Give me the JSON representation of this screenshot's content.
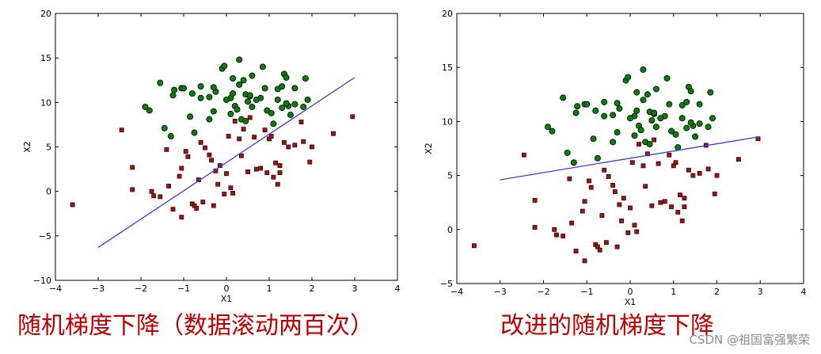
{
  "captions": {
    "left": "随机梯度下降（数据滚动两百次）",
    "right": "改进的随机梯度下降"
  },
  "watermark": "CSDN @祖国富强繁荣",
  "colors": {
    "class1_fill": "#0b7d0b",
    "class0_fill": "#a31010",
    "line": "#3a3aff",
    "caption": "#c00000"
  },
  "chart_data": [
    {
      "type": "scatter",
      "title": "",
      "xlabel": "X1",
      "ylabel": "X2",
      "xlim": [
        -4,
        4
      ],
      "ylim": [
        -10,
        20
      ],
      "xticks": [
        -4,
        -3,
        -2,
        -1,
        0,
        1,
        2,
        3,
        4
      ],
      "yticks": [
        -10,
        -5,
        0,
        5,
        10,
        15,
        20
      ],
      "series": [
        {
          "marker": "circle",
          "points": [
            [
              -1.55,
              12.2
            ],
            [
              -1.22,
              11.4
            ],
            [
              -1.05,
              11.6
            ],
            [
              -1.0,
              11.6
            ],
            [
              -0.8,
              11.0
            ],
            [
              -0.6,
              11.8
            ],
            [
              -0.4,
              10.6
            ],
            [
              -0.3,
              9.0
            ],
            [
              -0.1,
              13.8
            ],
            [
              -0.05,
              14.1
            ],
            [
              0.1,
              10.5
            ],
            [
              0.15,
              11.0
            ],
            [
              0.2,
              9.6
            ],
            [
              0.25,
              9.2
            ],
            [
              0.3,
              14.8
            ],
            [
              0.3,
              12.0
            ],
            [
              0.4,
              12.5
            ],
            [
              0.45,
              10.9
            ],
            [
              0.5,
              10.1
            ],
            [
              0.55,
              10.7
            ],
            [
              0.6,
              9.5
            ],
            [
              0.6,
              13.0
            ],
            [
              0.8,
              10.5
            ],
            [
              0.85,
              14.0
            ],
            [
              0.9,
              11.6
            ],
            [
              1.1,
              7.6
            ],
            [
              1.2,
              11.5
            ],
            [
              1.3,
              11.8
            ],
            [
              1.35,
              13.2
            ],
            [
              1.4,
              12.8
            ],
            [
              1.45,
              9.6
            ],
            [
              1.5,
              8.6
            ],
            [
              1.6,
              9.8
            ],
            [
              1.85,
              12.7
            ],
            [
              1.9,
              10.3
            ],
            [
              -1.9,
              9.5
            ],
            [
              -1.8,
              9.1
            ],
            [
              -1.45,
              7.1
            ],
            [
              -1.3,
              6.2
            ],
            [
              -1.25,
              10.8
            ],
            [
              -0.85,
              8.4
            ],
            [
              -0.75,
              6.6
            ],
            [
              -0.6,
              10.5
            ],
            [
              -0.4,
              8.1
            ],
            [
              -0.25,
              11.2
            ],
            [
              0.0,
              10.3
            ],
            [
              0.1,
              8.7
            ],
            [
              0.35,
              8.1
            ],
            [
              0.45,
              7.9
            ],
            [
              0.55,
              10.8
            ],
            [
              0.95,
              9.1
            ],
            [
              1.05,
              8.8
            ],
            [
              1.3,
              9.4
            ],
            [
              1.6,
              11.6
            ],
            [
              1.8,
              9.5
            ],
            [
              -0.3,
              11.7
            ],
            [
              0.15,
              12.7
            ],
            [
              0.7,
              10.3
            ],
            [
              1.2,
              10.3
            ],
            [
              1.4,
              9.9
            ]
          ]
        },
        {
          "marker": "square",
          "points": [
            [
              -3.6,
              -1.5
            ],
            [
              -2.45,
              6.9
            ],
            [
              -2.2,
              2.7
            ],
            [
              -2.2,
              0.2
            ],
            [
              -1.75,
              0.0
            ],
            [
              -1.7,
              -0.5
            ],
            [
              -1.55,
              -0.6
            ],
            [
              -1.4,
              4.7
            ],
            [
              -1.35,
              0.6
            ],
            [
              -1.25,
              -2.0
            ],
            [
              -1.1,
              1.7
            ],
            [
              -1.05,
              -2.9
            ],
            [
              -0.95,
              4.5
            ],
            [
              -0.9,
              3.9
            ],
            [
              -0.8,
              -1.4
            ],
            [
              -0.75,
              -1.6
            ],
            [
              -0.7,
              -1.9
            ],
            [
              -0.65,
              1.3
            ],
            [
              -0.6,
              5.5
            ],
            [
              -0.5,
              4.9
            ],
            [
              -0.4,
              4.1
            ],
            [
              -0.35,
              3.5
            ],
            [
              -0.3,
              -1.6
            ],
            [
              -0.2,
              0.8
            ],
            [
              -0.15,
              2.9
            ],
            [
              0.0,
              2.0
            ],
            [
              0.05,
              6.2
            ],
            [
              0.1,
              0.4
            ],
            [
              0.15,
              -0.2
            ],
            [
              0.2,
              7.9
            ],
            [
              0.3,
              5.9
            ],
            [
              0.4,
              7.0
            ],
            [
              0.5,
              2.2
            ],
            [
              0.55,
              8.3
            ],
            [
              0.7,
              2.5
            ],
            [
              0.8,
              2.6
            ],
            [
              0.9,
              6.9
            ],
            [
              0.95,
              2.1
            ],
            [
              1.0,
              5.9
            ],
            [
              1.05,
              6.2
            ],
            [
              1.1,
              1.6
            ],
            [
              1.15,
              3.2
            ],
            [
              1.2,
              0.8
            ],
            [
              1.25,
              2.1
            ],
            [
              1.35,
              5.5
            ],
            [
              1.45,
              5.0
            ],
            [
              1.6,
              5.2
            ],
            [
              1.75,
              7.8
            ],
            [
              1.8,
              5.6
            ],
            [
              1.95,
              3.3
            ],
            [
              2.0,
              5.0
            ],
            [
              2.5,
              6.5
            ],
            [
              2.95,
              8.4
            ],
            [
              -0.05,
              -0.3
            ],
            [
              -0.25,
              2.3
            ],
            [
              0.35,
              4.0
            ],
            [
              0.65,
              6.1
            ],
            [
              1.25,
              2.9
            ],
            [
              -0.55,
              -1.2
            ],
            [
              -1.05,
              2.6
            ]
          ]
        }
      ],
      "line": {
        "x": [
          -3.0,
          3.0
        ],
        "y": [
          -6.3,
          12.8
        ]
      }
    },
    {
      "type": "scatter",
      "title": "",
      "xlabel": "X1",
      "ylabel": "X2",
      "xlim": [
        -4,
        4
      ],
      "ylim": [
        -5,
        20
      ],
      "xticks": [
        -4,
        -3,
        -2,
        -1,
        0,
        1,
        2,
        3,
        4
      ],
      "yticks": [
        -5,
        0,
        5,
        10,
        15,
        20
      ],
      "series": [
        {
          "marker": "circle",
          "points": [
            [
              -1.55,
              12.2
            ],
            [
              -1.22,
              11.4
            ],
            [
              -1.05,
              11.6
            ],
            [
              -1.0,
              11.6
            ],
            [
              -0.8,
              11.0
            ],
            [
              -0.6,
              11.8
            ],
            [
              -0.4,
              10.6
            ],
            [
              -0.3,
              9.0
            ],
            [
              -0.1,
              13.8
            ],
            [
              -0.05,
              14.1
            ],
            [
              0.1,
              10.5
            ],
            [
              0.15,
              11.0
            ],
            [
              0.2,
              9.6
            ],
            [
              0.25,
              9.2
            ],
            [
              0.3,
              14.8
            ],
            [
              0.3,
              12.0
            ],
            [
              0.4,
              12.5
            ],
            [
              0.45,
              10.9
            ],
            [
              0.5,
              10.1
            ],
            [
              0.55,
              10.7
            ],
            [
              0.6,
              9.5
            ],
            [
              0.6,
              13.0
            ],
            [
              0.8,
              10.5
            ],
            [
              0.85,
              14.0
            ],
            [
              0.9,
              11.6
            ],
            [
              1.1,
              7.6
            ],
            [
              1.2,
              11.5
            ],
            [
              1.3,
              11.8
            ],
            [
              1.35,
              13.2
            ],
            [
              1.4,
              12.8
            ],
            [
              1.45,
              9.6
            ],
            [
              1.5,
              8.6
            ],
            [
              1.6,
              9.8
            ],
            [
              1.85,
              12.7
            ],
            [
              1.9,
              10.3
            ],
            [
              -1.9,
              9.5
            ],
            [
              -1.8,
              9.1
            ],
            [
              -1.45,
              7.1
            ],
            [
              -1.3,
              6.2
            ],
            [
              -1.25,
              10.8
            ],
            [
              -0.85,
              8.4
            ],
            [
              -0.75,
              6.6
            ],
            [
              -0.6,
              10.5
            ],
            [
              -0.4,
              8.1
            ],
            [
              -0.25,
              11.2
            ],
            [
              0.0,
              10.3
            ],
            [
              0.1,
              8.7
            ],
            [
              0.35,
              8.1
            ],
            [
              0.45,
              7.9
            ],
            [
              0.55,
              10.8
            ],
            [
              0.95,
              9.1
            ],
            [
              1.05,
              8.8
            ],
            [
              1.3,
              9.4
            ],
            [
              1.6,
              11.6
            ],
            [
              1.8,
              9.5
            ],
            [
              -0.3,
              11.7
            ],
            [
              0.15,
              12.7
            ],
            [
              0.7,
              10.3
            ],
            [
              1.2,
              10.3
            ],
            [
              1.4,
              9.9
            ]
          ]
        },
        {
          "marker": "square",
          "points": [
            [
              -3.6,
              -1.5
            ],
            [
              -2.45,
              6.9
            ],
            [
              -2.2,
              2.7
            ],
            [
              -2.2,
              0.2
            ],
            [
              -1.75,
              0.0
            ],
            [
              -1.7,
              -0.5
            ],
            [
              -1.55,
              -0.6
            ],
            [
              -1.4,
              4.7
            ],
            [
              -1.35,
              0.6
            ],
            [
              -1.25,
              -2.0
            ],
            [
              -1.1,
              1.7
            ],
            [
              -1.05,
              -2.9
            ],
            [
              -0.95,
              4.5
            ],
            [
              -0.9,
              3.9
            ],
            [
              -0.8,
              -1.4
            ],
            [
              -0.75,
              -1.6
            ],
            [
              -0.7,
              -1.9
            ],
            [
              -0.65,
              1.3
            ],
            [
              -0.6,
              5.5
            ],
            [
              -0.5,
              4.9
            ],
            [
              -0.4,
              4.1
            ],
            [
              -0.35,
              3.5
            ],
            [
              -0.3,
              -1.6
            ],
            [
              -0.2,
              0.8
            ],
            [
              -0.15,
              2.9
            ],
            [
              0.0,
              2.0
            ],
            [
              0.05,
              6.2
            ],
            [
              0.1,
              0.4
            ],
            [
              0.15,
              -0.2
            ],
            [
              0.2,
              7.9
            ],
            [
              0.3,
              5.9
            ],
            [
              0.4,
              7.0
            ],
            [
              0.5,
              2.2
            ],
            [
              0.55,
              8.3
            ],
            [
              0.7,
              2.5
            ],
            [
              0.8,
              2.6
            ],
            [
              0.9,
              6.9
            ],
            [
              0.95,
              2.1
            ],
            [
              1.0,
              5.9
            ],
            [
              1.05,
              6.2
            ],
            [
              1.1,
              1.6
            ],
            [
              1.15,
              3.2
            ],
            [
              1.2,
              0.8
            ],
            [
              1.25,
              2.1
            ],
            [
              1.35,
              5.5
            ],
            [
              1.45,
              5.0
            ],
            [
              1.6,
              5.2
            ],
            [
              1.75,
              7.8
            ],
            [
              1.8,
              5.6
            ],
            [
              1.95,
              3.3
            ],
            [
              2.0,
              5.0
            ],
            [
              2.5,
              6.5
            ],
            [
              2.95,
              8.4
            ],
            [
              -0.05,
              -0.3
            ],
            [
              -0.25,
              2.3
            ],
            [
              0.35,
              4.0
            ],
            [
              0.65,
              6.1
            ],
            [
              1.25,
              2.9
            ],
            [
              -0.55,
              -1.2
            ],
            [
              -1.05,
              2.6
            ]
          ]
        }
      ],
      "line": {
        "x": [
          -3.0,
          3.0
        ],
        "y": [
          4.6,
          8.6
        ]
      }
    }
  ]
}
